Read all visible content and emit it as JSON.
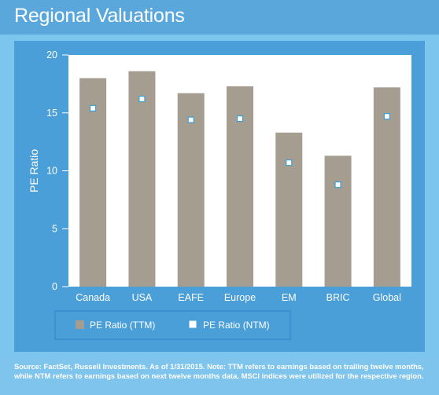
{
  "title": "Regional Valuations",
  "source": "Source: FactSet, Russell Investments. As of 1/31/2015. Note: TTM refers to earnings based on trailing twelve months, while NTM refers to earnings based on next twelve months data. MSCI indices were utilized for the respective region.",
  "colors": {
    "header": "#5aa7dc",
    "panel": "#4a9fd8",
    "bar": "#a59d90",
    "marker_fill": "#ffffff",
    "marker_stroke": "#3aa0d8",
    "plot_background": "#ffffff"
  },
  "chart_data": {
    "type": "bar",
    "categories": [
      "Canada",
      "USA",
      "EAFE",
      "Europe",
      "EM",
      "BRIC",
      "Global"
    ],
    "series": [
      {
        "name": "PE Ratio (TTM)",
        "kind": "bar",
        "values": [
          18.0,
          18.6,
          16.7,
          17.3,
          13.3,
          11.3,
          17.2
        ]
      },
      {
        "name": "PE Ratio (NTM)",
        "kind": "marker",
        "values": [
          15.4,
          16.2,
          14.4,
          14.5,
          10.7,
          8.8,
          14.7
        ]
      }
    ],
    "ylabel": "PE Ratio",
    "xlabel": "",
    "ylim": [
      0,
      20
    ],
    "yticks": [
      0,
      5,
      10,
      15,
      20
    ],
    "grid": false,
    "legend_position": "bottom"
  }
}
